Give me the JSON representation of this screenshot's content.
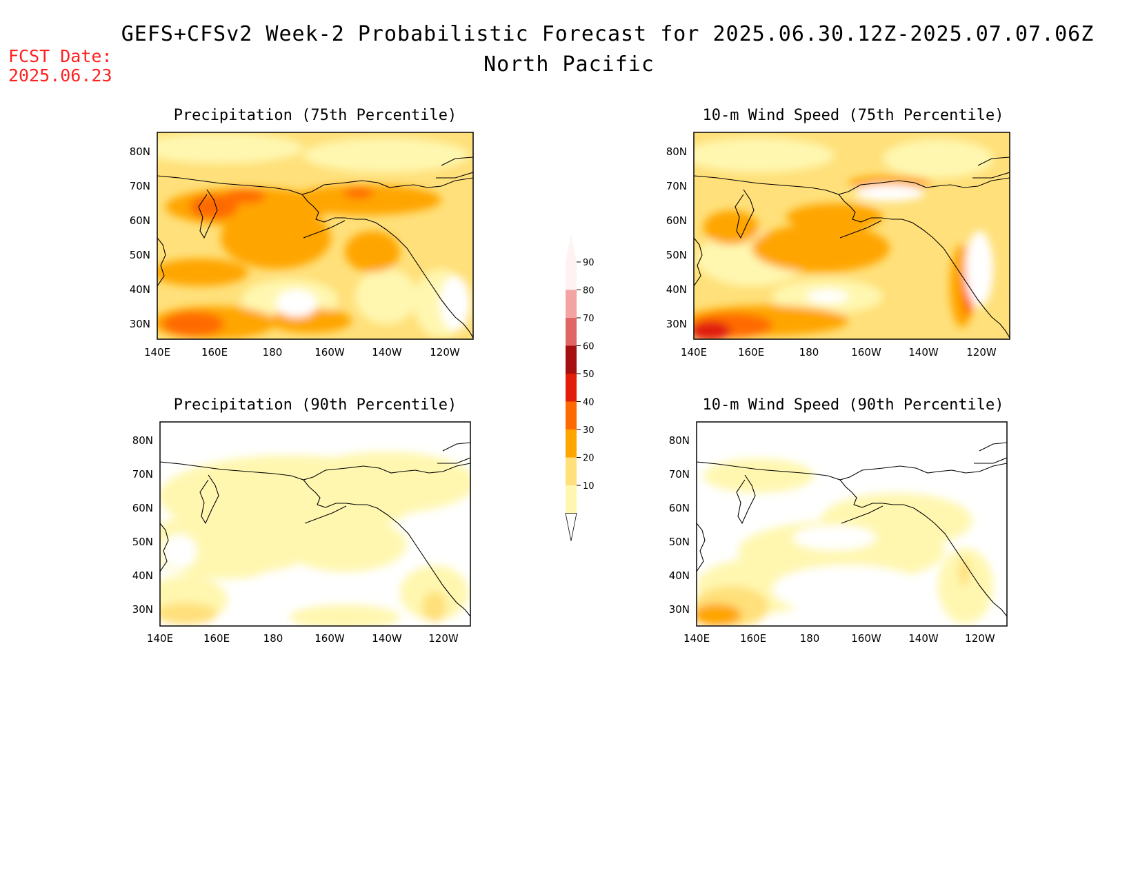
{
  "title": {
    "line1": "GEFS+CFSv2 Week-2 Probabilistic Forecast for 2025.06.30.12Z-2025.07.07.06Z",
    "line2": "North Pacific"
  },
  "fcst_date": {
    "label": "FCST Date:",
    "value": "2025.06.23"
  },
  "lat_ticks": [
    "80N",
    "70N",
    "60N",
    "50N",
    "40N",
    "30N"
  ],
  "lon_ticks": [
    "140E",
    "160E",
    "180",
    "160W",
    "140W",
    "120W"
  ],
  "colorbar": {
    "ticks": [
      "90",
      "80",
      "70",
      "60",
      "50",
      "40",
      "30",
      "20",
      "10"
    ],
    "colors": [
      "#fff2f2",
      "#f4a3a3",
      "#e06666",
      "#a50f0f",
      "#e01e0a",
      "#ff6a00",
      "#ffa500",
      "#ffe07a",
      "#fff7b0"
    ]
  },
  "panels": [
    {
      "id": "precip75",
      "title": "Precipitation (75th Percentile)"
    },
    {
      "id": "wind75",
      "title": "10-m Wind Speed (75th Percentile)"
    },
    {
      "id": "precip90",
      "title": "Precipitation (90th Percentile)"
    },
    {
      "id": "wind90",
      "title": "10-m Wind Speed (90th Percentile)"
    }
  ]
}
